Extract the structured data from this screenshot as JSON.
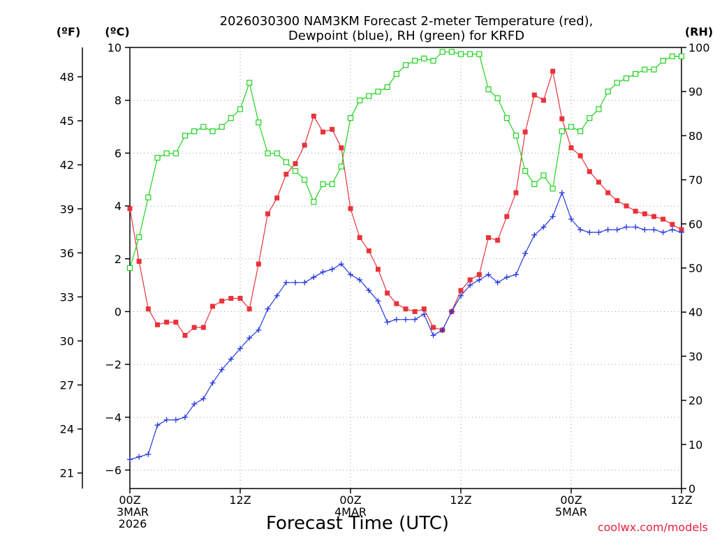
{
  "chart_data": {
    "type": "line",
    "title": [
      "2026030300 NAM3KM Forecast 2-meter Temperature (red),",
      "Dewpoint (blue), RH (green) for KRFD"
    ],
    "xlabel": "Forecast Time (UTC)",
    "credit": "coolwx.com/models",
    "units": {
      "fahrenheit": "(ºF)",
      "celsius": "(ºC)",
      "rh": "(RH)"
    },
    "x_range_hours": [
      0,
      60
    ],
    "x_ticks": [
      {
        "hour": 0,
        "lines": [
          "00Z",
          "3MAR",
          "2026"
        ]
      },
      {
        "hour": 12,
        "lines": [
          "12Z"
        ]
      },
      {
        "hour": 24,
        "lines": [
          "00Z",
          "4MAR"
        ]
      },
      {
        "hour": 36,
        "lines": [
          "12Z"
        ]
      },
      {
        "hour": 48,
        "lines": [
          "00Z",
          "5MAR"
        ]
      },
      {
        "hour": 60,
        "lines": [
          "12Z"
        ]
      }
    ],
    "y_celsius": {
      "range": [
        -6.7,
        10
      ],
      "ticks": [
        -6,
        -4,
        -2,
        0,
        2,
        4,
        6,
        8,
        10
      ]
    },
    "y_fahrenheit": {
      "ticks": [
        21,
        24,
        27,
        30,
        33,
        36,
        39,
        42,
        45,
        48
      ]
    },
    "y_rh": {
      "range": [
        0,
        100
      ],
      "ticks": [
        0,
        10,
        20,
        30,
        40,
        50,
        60,
        70,
        80,
        90,
        100
      ]
    },
    "series": [
      {
        "name": "2-meter Temperature (°C)",
        "color": "#e8333a",
        "marker": "filled-square",
        "axis": "celsius",
        "hours": [
          0,
          1,
          2,
          3,
          4,
          5,
          6,
          7,
          8,
          9,
          10,
          11,
          12,
          13,
          14,
          15,
          16,
          17,
          18,
          19,
          20,
          21,
          22,
          23,
          24,
          25,
          26,
          27,
          28,
          29,
          30,
          31,
          32,
          33,
          34,
          35,
          36,
          37,
          38,
          39,
          40,
          41,
          42,
          43,
          44,
          45,
          46,
          47,
          48,
          49,
          50,
          51,
          52,
          53,
          54,
          55,
          56,
          57,
          58,
          59,
          60
        ],
        "values": [
          3.9,
          1.9,
          0.1,
          -0.5,
          -0.4,
          -0.4,
          -0.9,
          -0.6,
          -0.6,
          0.2,
          0.4,
          0.5,
          0.5,
          0.1,
          1.8,
          3.7,
          4.3,
          5.2,
          5.6,
          6.3,
          7.4,
          6.8,
          6.9,
          6.2,
          3.9,
          2.8,
          2.3,
          1.6,
          0.7,
          0.3,
          0.1,
          0.0,
          0.1,
          -0.6,
          -0.7,
          0.0,
          0.8,
          1.2,
          1.4,
          2.8,
          2.7,
          3.6,
          4.5,
          6.8,
          8.2,
          8.0,
          9.1,
          7.3,
          6.2,
          5.9,
          5.3,
          4.9,
          4.5,
          4.2,
          4.0,
          3.8,
          3.7,
          3.6,
          3.5,
          3.3,
          3.1
        ]
      },
      {
        "name": "Dewpoint (°C)",
        "color": "#2437e0",
        "marker": "plus",
        "axis": "celsius",
        "hours": [
          0,
          1,
          2,
          3,
          4,
          5,
          6,
          7,
          8,
          9,
          10,
          11,
          12,
          13,
          14,
          15,
          16,
          17,
          18,
          19,
          20,
          21,
          22,
          23,
          24,
          25,
          26,
          27,
          28,
          29,
          30,
          31,
          32,
          33,
          34,
          35,
          36,
          37,
          38,
          39,
          40,
          41,
          42,
          43,
          44,
          45,
          46,
          47,
          48,
          49,
          50,
          51,
          52,
          53,
          54,
          55,
          56,
          57,
          58,
          59,
          60
        ],
        "values": [
          -5.6,
          -5.5,
          -5.4,
          -4.3,
          -4.1,
          -4.1,
          -4.0,
          -3.5,
          -3.3,
          -2.7,
          -2.2,
          -1.8,
          -1.4,
          -1.0,
          -0.7,
          0.1,
          0.6,
          1.1,
          1.1,
          1.1,
          1.3,
          1.5,
          1.6,
          1.8,
          1.4,
          1.2,
          0.8,
          0.4,
          -0.4,
          -0.3,
          -0.3,
          -0.3,
          -0.1,
          -0.9,
          -0.7,
          0.0,
          0.6,
          1.0,
          1.2,
          1.4,
          1.1,
          1.3,
          1.4,
          2.2,
          2.9,
          3.2,
          3.6,
          4.5,
          3.5,
          3.1,
          3.0,
          3.0,
          3.1,
          3.1,
          3.2,
          3.2,
          3.1,
          3.1,
          3.0,
          3.1,
          3.0
        ]
      },
      {
        "name": "RH (%)",
        "color": "#1ed31e",
        "marker": "open-square",
        "axis": "rh",
        "hours": [
          0,
          1,
          2,
          3,
          4,
          5,
          6,
          7,
          8,
          9,
          10,
          11,
          12,
          13,
          14,
          15,
          16,
          17,
          18,
          19,
          20,
          21,
          22,
          23,
          24,
          25,
          26,
          27,
          28,
          29,
          30,
          31,
          32,
          33,
          34,
          35,
          36,
          37,
          38,
          39,
          40,
          41,
          42,
          43,
          44,
          45,
          46,
          47,
          48,
          49,
          50,
          51,
          52,
          53,
          54,
          55,
          56,
          57,
          58,
          59,
          60
        ],
        "values": [
          50,
          57,
          66,
          75,
          76,
          76,
          80,
          81,
          82,
          81,
          82,
          84,
          86,
          92,
          83,
          76,
          76,
          74,
          72,
          70,
          65,
          69,
          69,
          73,
          84,
          88,
          89,
          90,
          91,
          94,
          96,
          97,
          97.5,
          97,
          99,
          99,
          98.5,
          98.5,
          98.5,
          90.5,
          88.5,
          84,
          80,
          72,
          69,
          71,
          68,
          81,
          82,
          81,
          84,
          86,
          90,
          92,
          93,
          94,
          95,
          95,
          97,
          98,
          98
        ]
      }
    ]
  }
}
